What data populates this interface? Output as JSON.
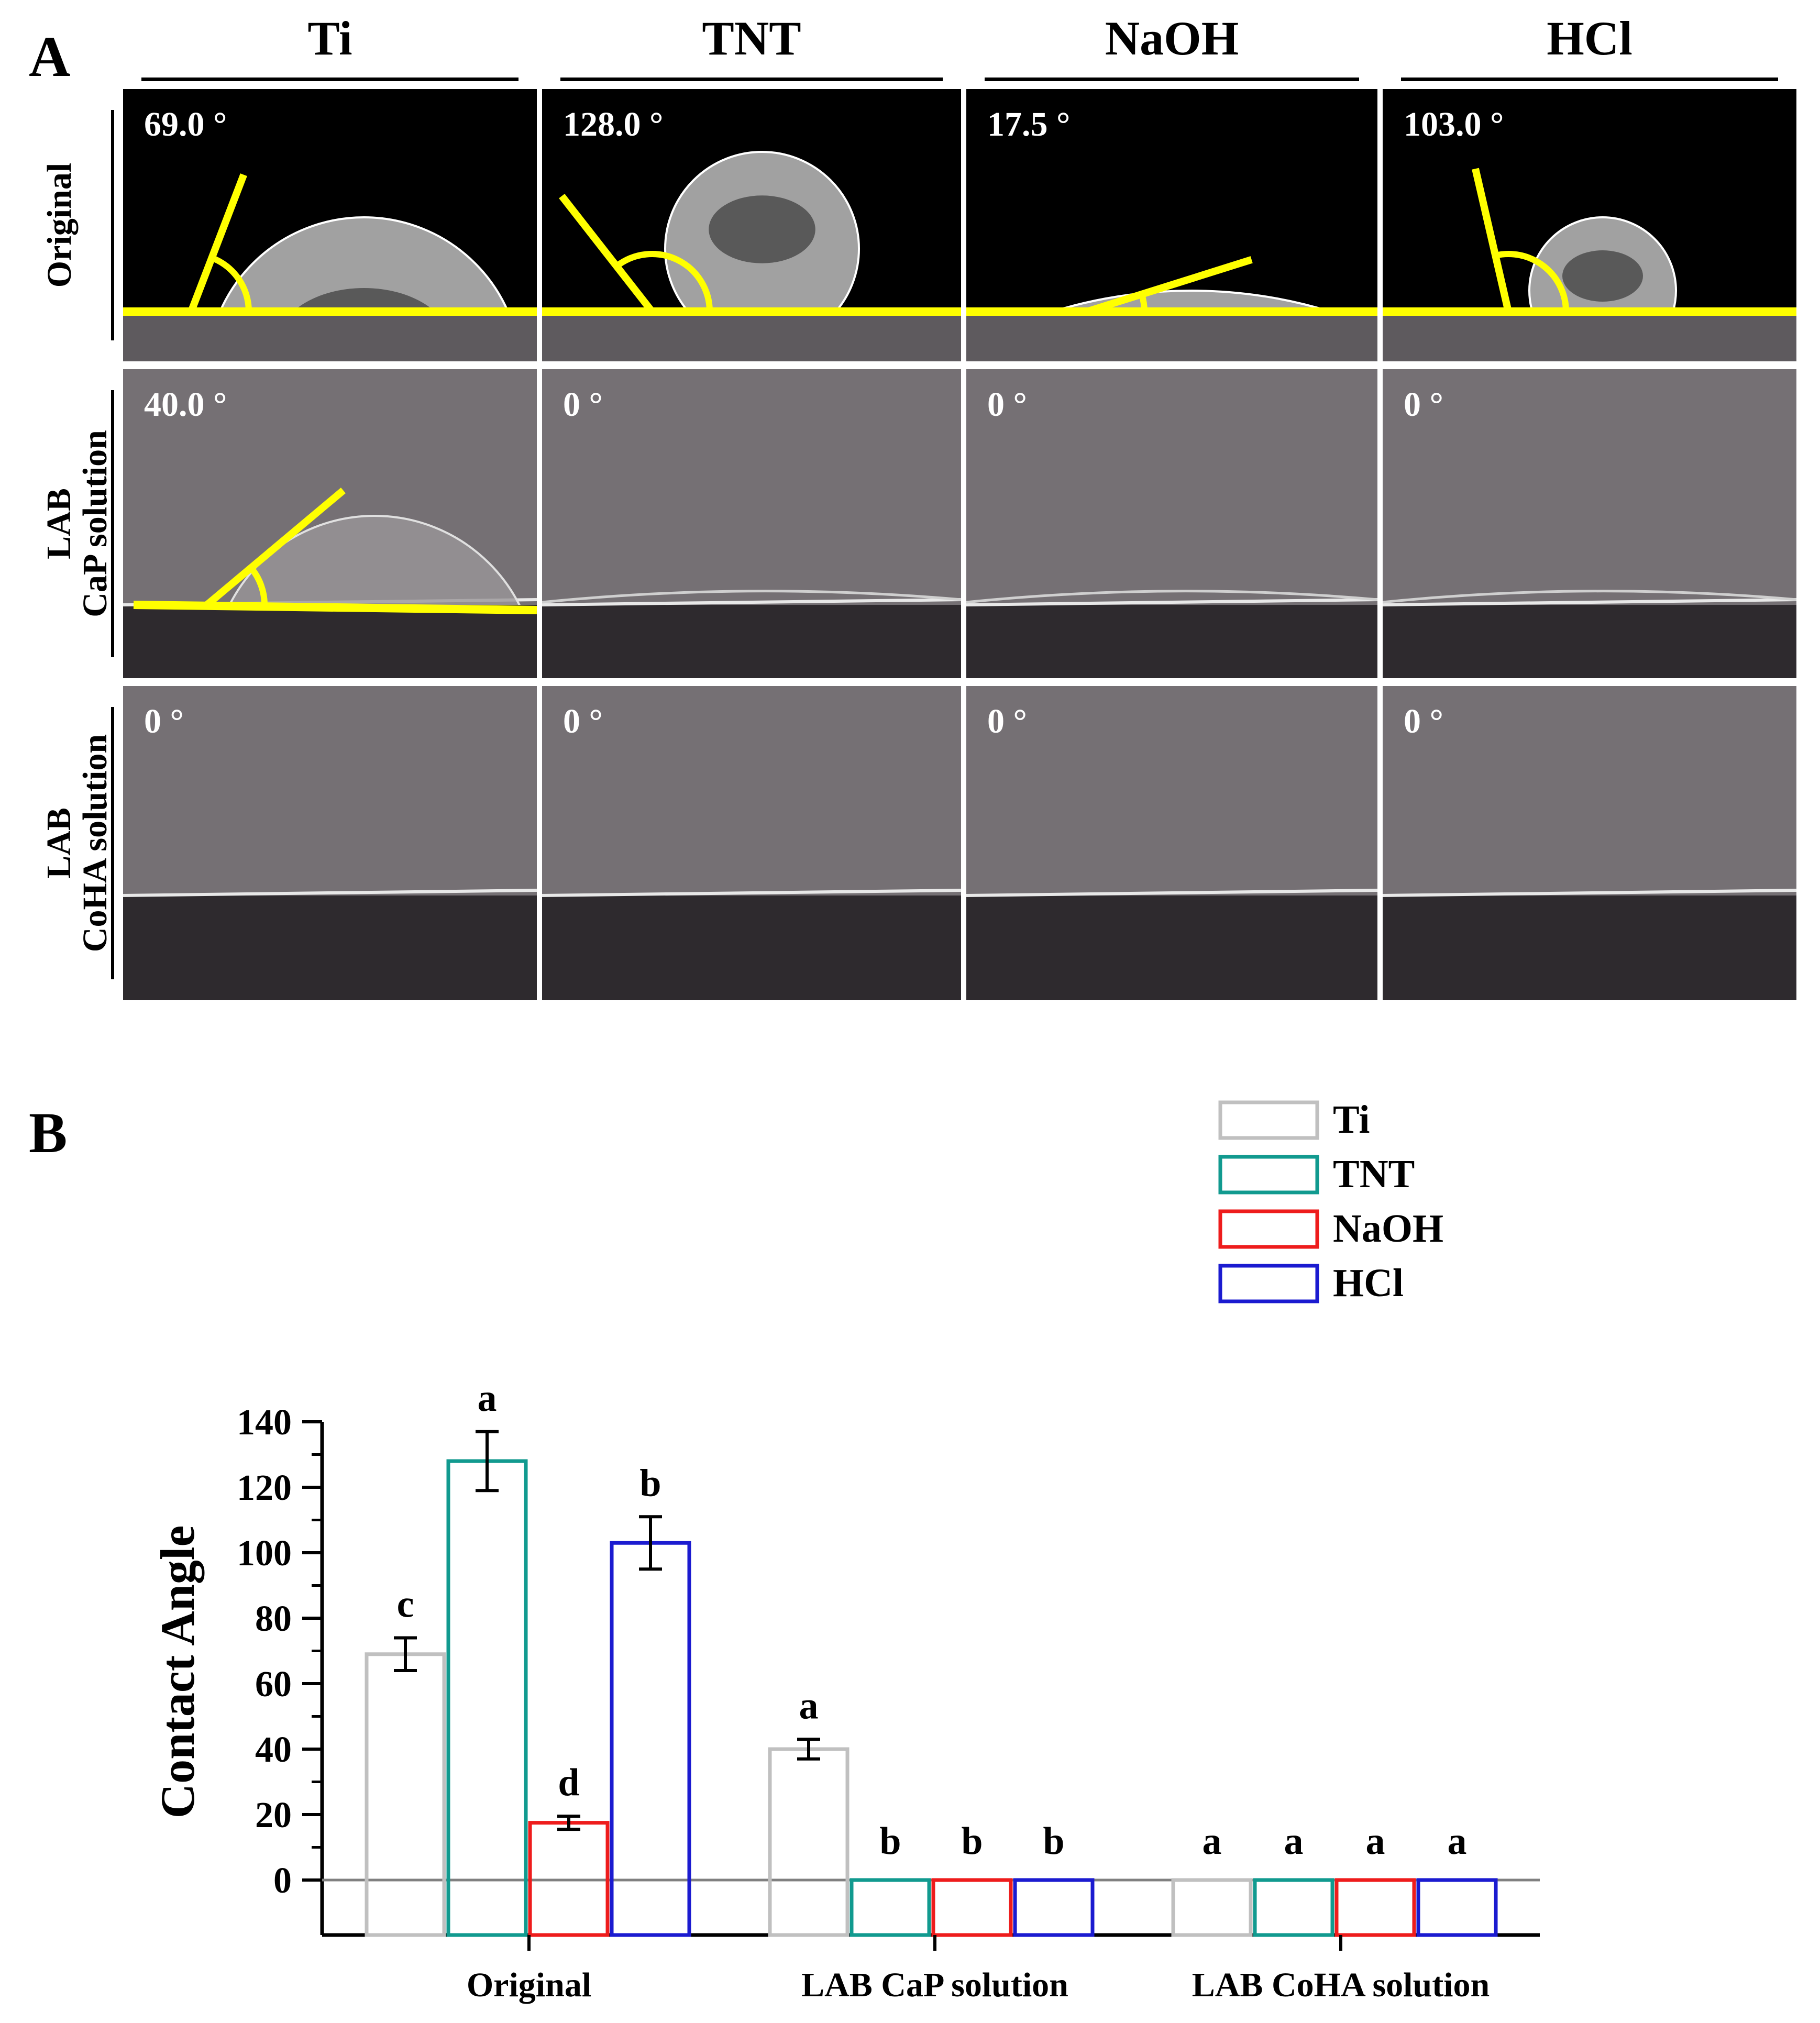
{
  "panel_a": {
    "letter": "A",
    "columns": [
      "Ti",
      "TNT",
      "NaOH",
      "HCl"
    ],
    "rows": [
      {
        "label_lines": [
          "Original"
        ],
        "angles": [
          "69.0 °",
          "128.0 °",
          "17.5 °",
          "103.0 °"
        ]
      },
      {
        "label_lines": [
          "LAB",
          "CaP solution"
        ],
        "angles": [
          "40.0 °",
          "0 °",
          "0 °",
          "0 °"
        ]
      },
      {
        "label_lines": [
          "LAB",
          "CoHA solution"
        ],
        "angles": [
          "0 °",
          "0 °",
          "0 °",
          "0 °"
        ]
      }
    ],
    "tangent_color": "#ffff00"
  },
  "panel_b": {
    "letter": "B"
  },
  "chart_data": {
    "type": "bar",
    "categories": [
      "Original",
      "LAB CaP solution",
      "LAB CoHA solution"
    ],
    "series": [
      {
        "name": "Ti",
        "color": "#c0c0c0",
        "values": [
          69,
          40,
          0
        ],
        "errors": [
          5,
          3,
          0
        ],
        "letters": [
          "c",
          "a",
          "a"
        ]
      },
      {
        "name": "TNT",
        "color": "#119a8f",
        "values": [
          128,
          0,
          0
        ],
        "errors": [
          9,
          0,
          0
        ],
        "letters": [
          "a",
          "b",
          "a"
        ]
      },
      {
        "name": "NaOH",
        "color": "#ee1c1c",
        "values": [
          17.5,
          0,
          0
        ],
        "errors": [
          2,
          0,
          0
        ],
        "letters": [
          "d",
          "b",
          "a"
        ]
      },
      {
        "name": "HCl",
        "color": "#1b1bd0",
        "values": [
          103,
          0,
          0
        ],
        "errors": [
          8,
          0,
          0
        ],
        "letters": [
          "b",
          "b",
          "a"
        ]
      }
    ],
    "ylabel": "Contact Angle",
    "yticks": [
      0,
      20,
      40,
      60,
      80,
      100,
      120,
      140
    ],
    "ylim": [
      -10,
      140
    ],
    "grid": false,
    "legend_position": "top-right"
  }
}
